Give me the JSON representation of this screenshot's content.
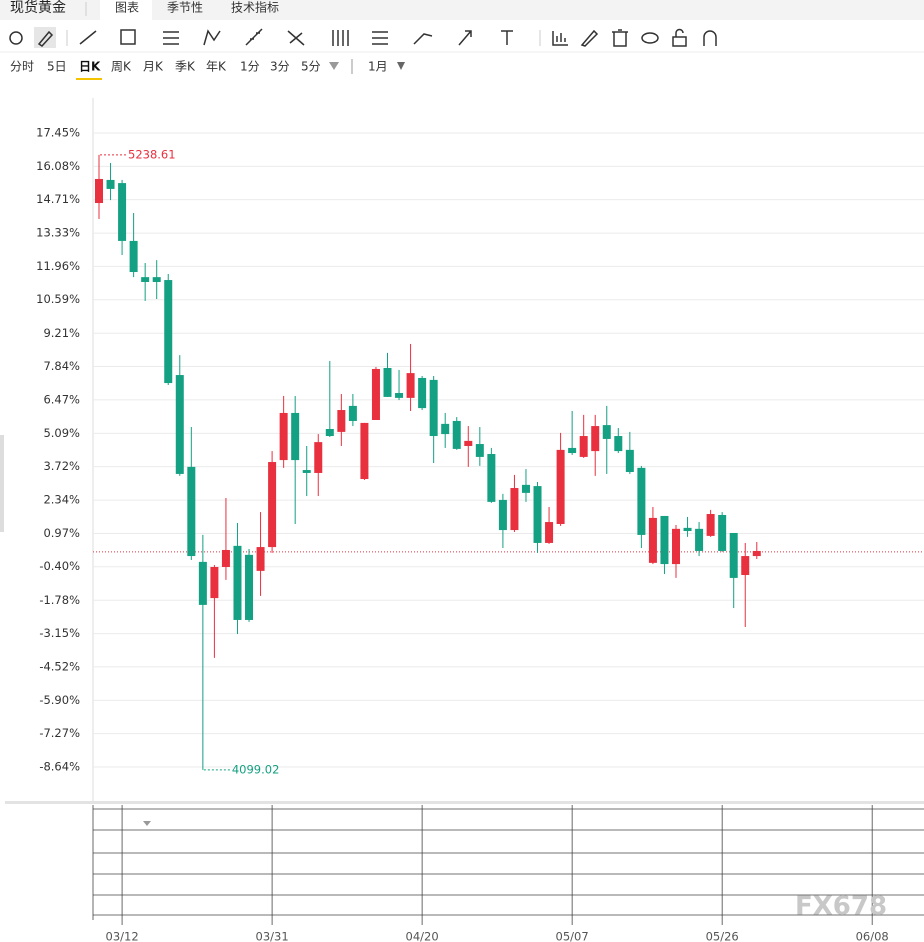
{
  "ui": {
    "tabs": [
      "现货黄金",
      "图表",
      "季节性",
      "技术指标"
    ],
    "periods": [
      "分时",
      "5日",
      "日K",
      "周K",
      "月K",
      "季K",
      "年K",
      "1分",
      "3分",
      "5分"
    ],
    "range": "1月",
    "watermark": "FX678"
  },
  "chart_data": {
    "type": "candlestick",
    "categories": [
      null,
      null,
      "03/12",
      null,
      null,
      null,
      null,
      null,
      null,
      null,
      null,
      null,
      null,
      null,
      null,
      "03/31",
      null,
      null,
      null,
      null,
      null,
      null,
      null,
      null,
      null,
      null,
      null,
      null,
      "04/20",
      null,
      null,
      null,
      null,
      null,
      null,
      null,
      null,
      null,
      null,
      null,
      null,
      "05/07",
      null,
      null,
      null,
      null,
      null,
      null,
      null,
      null,
      null,
      null,
      null,
      null,
      "05/26",
      null,
      null,
      null,
      null,
      null,
      null,
      null,
      null,
      null,
      null,
      null,
      null,
      "06/08"
    ],
    "open": [
      14.57,
      15.52,
      15.39,
      13.01,
      11.52,
      11.52,
      11.4,
      7.49,
      3.71,
      -0.2,
      -1.69,
      -0.41,
      0.46,
      0.09,
      -0.57,
      0.41,
      3.99,
      5.93,
      3.58,
      3.46,
      5.27,
      5.15,
      6.22,
      3.21,
      5.64,
      7.78,
      6.75,
      6.55,
      7.37,
      7.29,
      5.48,
      5.6,
      4.57,
      4.65,
      4.24,
      2.35,
      1.11,
      2.97,
      2.92,
      0.58,
      1.36,
      4.49,
      4.12,
      4.36,
      5.43,
      4.98,
      4.41,
      3.67,
      -0.24,
      1.69,
      -0.29,
      1.2,
      1.16,
      0.87,
      1.73,
      0.99,
      -0.74,
      0.04,
      null,
      null,
      null,
      null,
      null,
      null,
      null,
      null,
      null,
      null
    ],
    "high": [
      16.55,
      16.22,
      15.52,
      14.16,
      12.1,
      12.22,
      11.65,
      8.31,
      5.35,
      0.91,
      -0.33,
      2.43,
      1.4,
      0.33,
      1.85,
      4.36,
      6.63,
      6.63,
      4.57,
      5.06,
      8.07,
      6.71,
      6.71,
      5.52,
      7.82,
      8.4,
      7.7,
      8.77,
      7.45,
      7.45,
      5.93,
      5.76,
      5.39,
      5.35,
      4.49,
      2.6,
      3.38,
      3.62,
      3.09,
      2.06,
      5.11,
      6.01,
      5.85,
      5.85,
      6.22,
      5.31,
      5.15,
      3.75,
      2.06,
      1.69,
      1.32,
      1.65,
      1.44,
      1.94,
      1.85,
      0.99,
      0.58,
      0.62,
      null,
      null,
      null,
      null,
      null,
      null,
      null,
      null,
      null,
      null
    ],
    "low": [
      13.91,
      14.69,
      12.43,
      11.52,
      10.54,
      10.62,
      7.08,
      3.34,
      -0.12,
      -8.76,
      -4.15,
      -0.94,
      -3.17,
      -2.67,
      -1.6,
      0.17,
      3.67,
      1.36,
      2.51,
      2.51,
      4.94,
      4.57,
      5.39,
      3.17,
      5.64,
      6.59,
      6.46,
      6.01,
      6.05,
      3.87,
      4.49,
      4.41,
      3.71,
      3.75,
      2.23,
      0.37,
      1.03,
      2.27,
      0.17,
      0.54,
      1.28,
      4.2,
      4.08,
      3.34,
      3.42,
      4.28,
      3.42,
      0.37,
      -0.29,
      -0.7,
      -0.86,
      0.83,
      0.04,
      0.83,
      0.21,
      -2.1,
      -2.88,
      -0.08,
      null,
      null,
      null,
      null,
      null,
      null,
      null,
      null,
      null,
      null
    ],
    "close": [
      15.56,
      15.15,
      13.01,
      11.73,
      11.32,
      11.32,
      7.16,
      3.42,
      0.04,
      -1.97,
      -0.41,
      0.29,
      -2.59,
      -2.59,
      0.41,
      3.91,
      5.93,
      3.99,
      3.46,
      4.73,
      4.98,
      6.05,
      5.6,
      5.52,
      7.74,
      6.59,
      6.55,
      7.57,
      6.13,
      4.98,
      5.06,
      4.45,
      4.78,
      4.12,
      2.27,
      1.11,
      2.84,
      2.64,
      0.58,
      1.44,
      4.41,
      4.28,
      4.98,
      5.39,
      4.86,
      4.36,
      3.5,
      0.91,
      1.61,
      -0.29,
      1.16,
      1.07,
      0.25,
      1.77,
      0.25,
      -0.86,
      0.04,
      0.25,
      null,
      null,
      null,
      null,
      null,
      null,
      null,
      null,
      null,
      null
    ],
    "up_color": "#e8303f",
    "down_color": "#14a083",
    "ylim": [
      -10.0,
      18.81
    ],
    "yticks": [
      {
        "value": 17.45,
        "label": "17.45%"
      },
      {
        "value": 16.08,
        "label": "16.08%"
      },
      {
        "value": 14.71,
        "label": "14.71%"
      },
      {
        "value": 13.33,
        "label": "13.33%"
      },
      {
        "value": 11.96,
        "label": "11.96%"
      },
      {
        "value": 10.59,
        "label": "10.59%"
      },
      {
        "value": 9.21,
        "label": "9.21%"
      },
      {
        "value": 7.84,
        "label": "7.84%"
      },
      {
        "value": 6.47,
        "label": "6.47%"
      },
      {
        "value": 5.09,
        "label": "5.09%"
      },
      {
        "value": 3.72,
        "label": "3.72%"
      },
      {
        "value": 2.34,
        "label": "2.34%"
      },
      {
        "value": 0.97,
        "label": "0.97%"
      },
      {
        "value": -0.4,
        "label": "-0.40%"
      },
      {
        "value": -1.78,
        "label": "-1.78%"
      },
      {
        "value": -3.15,
        "label": "-3.15%"
      },
      {
        "value": -4.52,
        "label": "-4.52%"
      },
      {
        "value": -5.9,
        "label": "-5.90%"
      },
      {
        "value": -7.27,
        "label": "-7.27%"
      },
      {
        "value": -8.64,
        "label": "-8.64%"
      }
    ],
    "grid": true,
    "high_label": "5238.61",
    "low_label": "4099.02",
    "last_price_line": 0.21
  }
}
